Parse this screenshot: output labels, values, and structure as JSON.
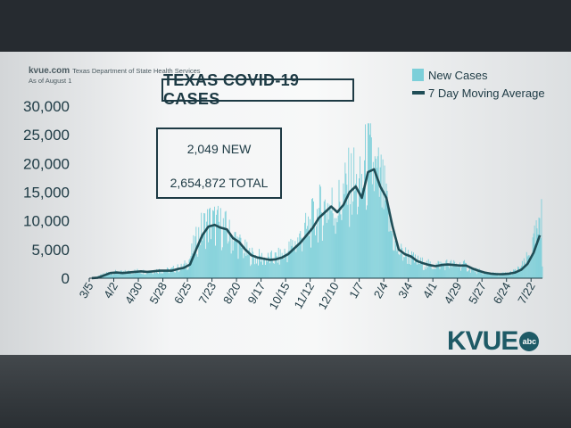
{
  "source": {
    "logo": "kvue.com",
    "line1": "Texas Department of State Health Services",
    "line2": "As of August 1"
  },
  "headline": "TEXAS COVID-19 CASES",
  "stats": {
    "new_label": "2,049 NEW",
    "total_label": "2,654,872 TOTAL"
  },
  "brand": {
    "name": "KVUE",
    "network": "abc"
  },
  "colors": {
    "bars": "#7ccfd9",
    "line": "#1f4d56",
    "text": "#1d3a44"
  },
  "chart_data": {
    "type": "bar",
    "title": "TEXAS COVID-19 CASES",
    "ylim": [
      0,
      30000
    ],
    "yticks": [
      0,
      5000,
      10000,
      15000,
      20000,
      25000,
      30000
    ],
    "ytick_labels": [
      "0",
      "5,000",
      "10,000",
      "15,000",
      "20,000",
      "25,000",
      "30,000"
    ],
    "x_tick_labels": [
      "3/5",
      "4/2",
      "4/30",
      "5/28",
      "6/25",
      "7/23",
      "8/20",
      "9/17",
      "10/15",
      "11/12",
      "12/10",
      "1/7",
      "2/4",
      "3/4",
      "4/1",
      "4/29",
      "5/27",
      "6/24",
      "7/22"
    ],
    "x_start": "3/5",
    "x_tick_step_weeks": 4,
    "legend": [
      "New Cases",
      "7 Day Moving Average"
    ],
    "legend_position": "top-right",
    "grid": false,
    "series": [
      {
        "name": "New Cases",
        "type": "bar",
        "weekly_avg_values": [
          20,
          100,
          500,
          900,
          1000,
          900,
          1000,
          1100,
          1200,
          1100,
          1200,
          1300,
          1300,
          1300,
          1600,
          1800,
          2400,
          5000,
          7500,
          9000,
          9300,
          8800,
          8500,
          7000,
          6300,
          5000,
          4000,
          3600,
          3400,
          3200,
          3300,
          3600,
          4200,
          5200,
          6200,
          7500,
          8800,
          10500,
          11500,
          12500,
          11500,
          12800,
          15000,
          16000,
          14000,
          18500,
          19000,
          16000,
          14000,
          9000,
          5000,
          4200,
          3800,
          3000,
          2600,
          2300,
          2100,
          2300,
          2400,
          2300,
          2200,
          2200,
          1700,
          1300,
          1000,
          800,
          700,
          700,
          800,
          1000,
          1500,
          2500,
          4500,
          7500
        ],
        "peak_single_day": 27000,
        "last_day": 2049
      },
      {
        "name": "7 Day Moving Average",
        "type": "line",
        "values": [
          20,
          100,
          500,
          900,
          1000,
          900,
          1000,
          1100,
          1200,
          1100,
          1200,
          1300,
          1300,
          1300,
          1600,
          1800,
          2400,
          5000,
          7500,
          9000,
          9300,
          8800,
          8500,
          7000,
          6300,
          5000,
          4000,
          3600,
          3400,
          3200,
          3300,
          3600,
          4200,
          5200,
          6200,
          7500,
          8800,
          10500,
          11500,
          12500,
          11500,
          12800,
          15000,
          16000,
          14000,
          18500,
          19000,
          16000,
          14000,
          9000,
          5000,
          4200,
          3800,
          3000,
          2600,
          2300,
          2100,
          2300,
          2400,
          2300,
          2200,
          2200,
          1700,
          1300,
          1000,
          800,
          700,
          700,
          800,
          1000,
          1500,
          2500,
          4500,
          7500
        ]
      }
    ]
  }
}
